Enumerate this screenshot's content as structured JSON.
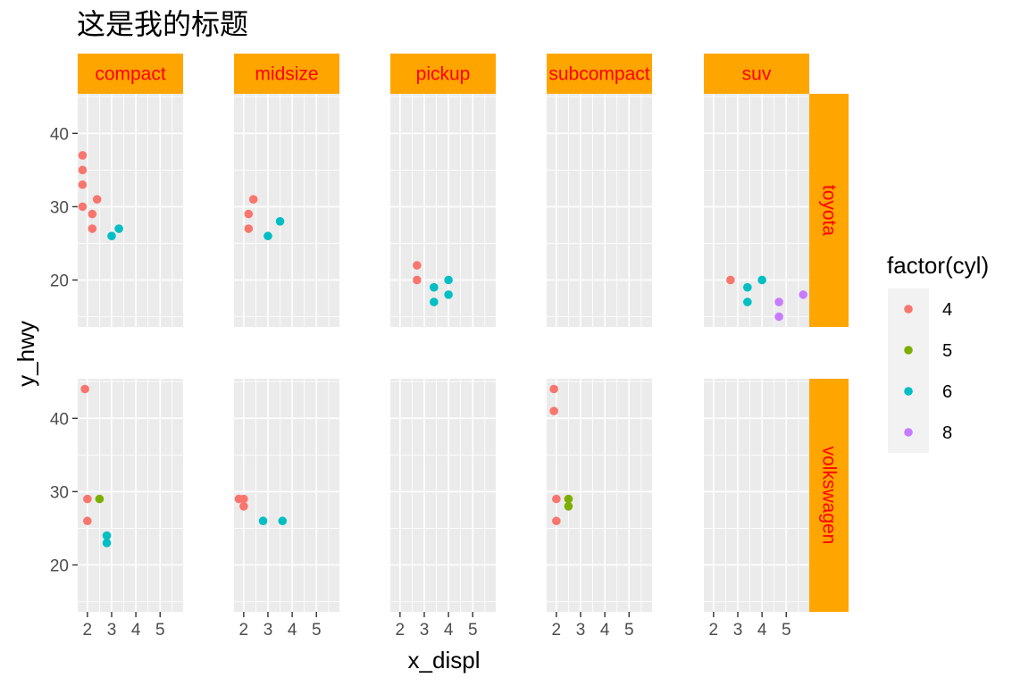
{
  "chart_data": {
    "type": "scatter",
    "title": "这是我的标题",
    "xlabel": "x_displ",
    "ylabel": "y_hwy",
    "xlim": [
      1.6,
      5.95
    ],
    "ylim": [
      13.6,
      45.4
    ],
    "x_ticks": [
      2,
      3,
      4,
      5
    ],
    "x_tick_labels": [
      "2",
      "3",
      "4",
      "5"
    ],
    "y_ticks": [
      20,
      30,
      40
    ],
    "y_tick_labels": [
      "20",
      "30",
      "40"
    ],
    "grid": true,
    "facet_columns": [
      "compact",
      "midsize",
      "pickup",
      "subcompact",
      "suv"
    ],
    "facet_rows": [
      "toyota",
      "volkswagen"
    ],
    "strip_colors": {
      "background": "#FFA500",
      "text": "#FF0000"
    },
    "legend": {
      "title": "factor(cyl)",
      "placement": "right",
      "entries": [
        {
          "label": "4",
          "color": "#F8766D"
        },
        {
          "label": "5",
          "color": "#7CAE00"
        },
        {
          "label": "6",
          "color": "#00BFC4"
        },
        {
          "label": "8",
          "color": "#C77CFF"
        }
      ]
    },
    "panels": [
      {
        "row": "toyota",
        "col": "compact",
        "points": [
          {
            "x": 1.8,
            "y": 37,
            "cyl": "4"
          },
          {
            "x": 1.8,
            "y": 35,
            "cyl": "4"
          },
          {
            "x": 1.8,
            "y": 33,
            "cyl": "4"
          },
          {
            "x": 1.8,
            "y": 30,
            "cyl": "4"
          },
          {
            "x": 2.2,
            "y": 29,
            "cyl": "4"
          },
          {
            "x": 2.2,
            "y": 27,
            "cyl": "4"
          },
          {
            "x": 2.4,
            "y": 31,
            "cyl": "4"
          },
          {
            "x": 3.0,
            "y": 26,
            "cyl": "6"
          },
          {
            "x": 3.3,
            "y": 27,
            "cyl": "6"
          }
        ]
      },
      {
        "row": "toyota",
        "col": "midsize",
        "points": [
          {
            "x": 2.2,
            "y": 29,
            "cyl": "4"
          },
          {
            "x": 2.2,
            "y": 27,
            "cyl": "4"
          },
          {
            "x": 2.4,
            "y": 31,
            "cyl": "4"
          },
          {
            "x": 3.0,
            "y": 26,
            "cyl": "6"
          },
          {
            "x": 3.5,
            "y": 28,
            "cyl": "6"
          }
        ]
      },
      {
        "row": "toyota",
        "col": "pickup",
        "points": [
          {
            "x": 2.7,
            "y": 22,
            "cyl": "4"
          },
          {
            "x": 2.7,
            "y": 20,
            "cyl": "4"
          },
          {
            "x": 3.4,
            "y": 19,
            "cyl": "6"
          },
          {
            "x": 3.4,
            "y": 17,
            "cyl": "6"
          },
          {
            "x": 4.0,
            "y": 20,
            "cyl": "6"
          },
          {
            "x": 4.0,
            "y": 18,
            "cyl": "6"
          }
        ]
      },
      {
        "row": "toyota",
        "col": "subcompact",
        "points": []
      },
      {
        "row": "toyota",
        "col": "suv",
        "points": [
          {
            "x": 2.7,
            "y": 20,
            "cyl": "4"
          },
          {
            "x": 3.4,
            "y": 19,
            "cyl": "6"
          },
          {
            "x": 3.4,
            "y": 17,
            "cyl": "6"
          },
          {
            "x": 4.0,
            "y": 20,
            "cyl": "6"
          },
          {
            "x": 4.7,
            "y": 17,
            "cyl": "8"
          },
          {
            "x": 4.7,
            "y": 15,
            "cyl": "8"
          },
          {
            "x": 5.7,
            "y": 18,
            "cyl": "8"
          }
        ]
      },
      {
        "row": "volkswagen",
        "col": "compact",
        "points": [
          {
            "x": 1.9,
            "y": 44,
            "cyl": "4"
          },
          {
            "x": 2.0,
            "y": 29,
            "cyl": "4"
          },
          {
            "x": 2.0,
            "y": 26,
            "cyl": "4"
          },
          {
            "x": 2.5,
            "y": 29,
            "cyl": "5"
          },
          {
            "x": 2.8,
            "y": 24,
            "cyl": "6"
          },
          {
            "x": 2.8,
            "y": 23,
            "cyl": "6"
          }
        ]
      },
      {
        "row": "volkswagen",
        "col": "midsize",
        "points": [
          {
            "x": 1.8,
            "y": 29,
            "cyl": "4"
          },
          {
            "x": 2.0,
            "y": 29,
            "cyl": "4"
          },
          {
            "x": 2.0,
            "y": 28,
            "cyl": "4"
          },
          {
            "x": 2.8,
            "y": 26,
            "cyl": "6"
          },
          {
            "x": 3.6,
            "y": 26,
            "cyl": "6"
          }
        ]
      },
      {
        "row": "volkswagen",
        "col": "pickup",
        "points": []
      },
      {
        "row": "volkswagen",
        "col": "subcompact",
        "points": [
          {
            "x": 1.9,
            "y": 44,
            "cyl": "4"
          },
          {
            "x": 1.9,
            "y": 41,
            "cyl": "4"
          },
          {
            "x": 2.0,
            "y": 29,
            "cyl": "4"
          },
          {
            "x": 2.0,
            "y": 26,
            "cyl": "4"
          },
          {
            "x": 2.5,
            "y": 29,
            "cyl": "5"
          },
          {
            "x": 2.5,
            "y": 28,
            "cyl": "5"
          }
        ]
      },
      {
        "row": "volkswagen",
        "col": "suv",
        "points": []
      }
    ]
  }
}
